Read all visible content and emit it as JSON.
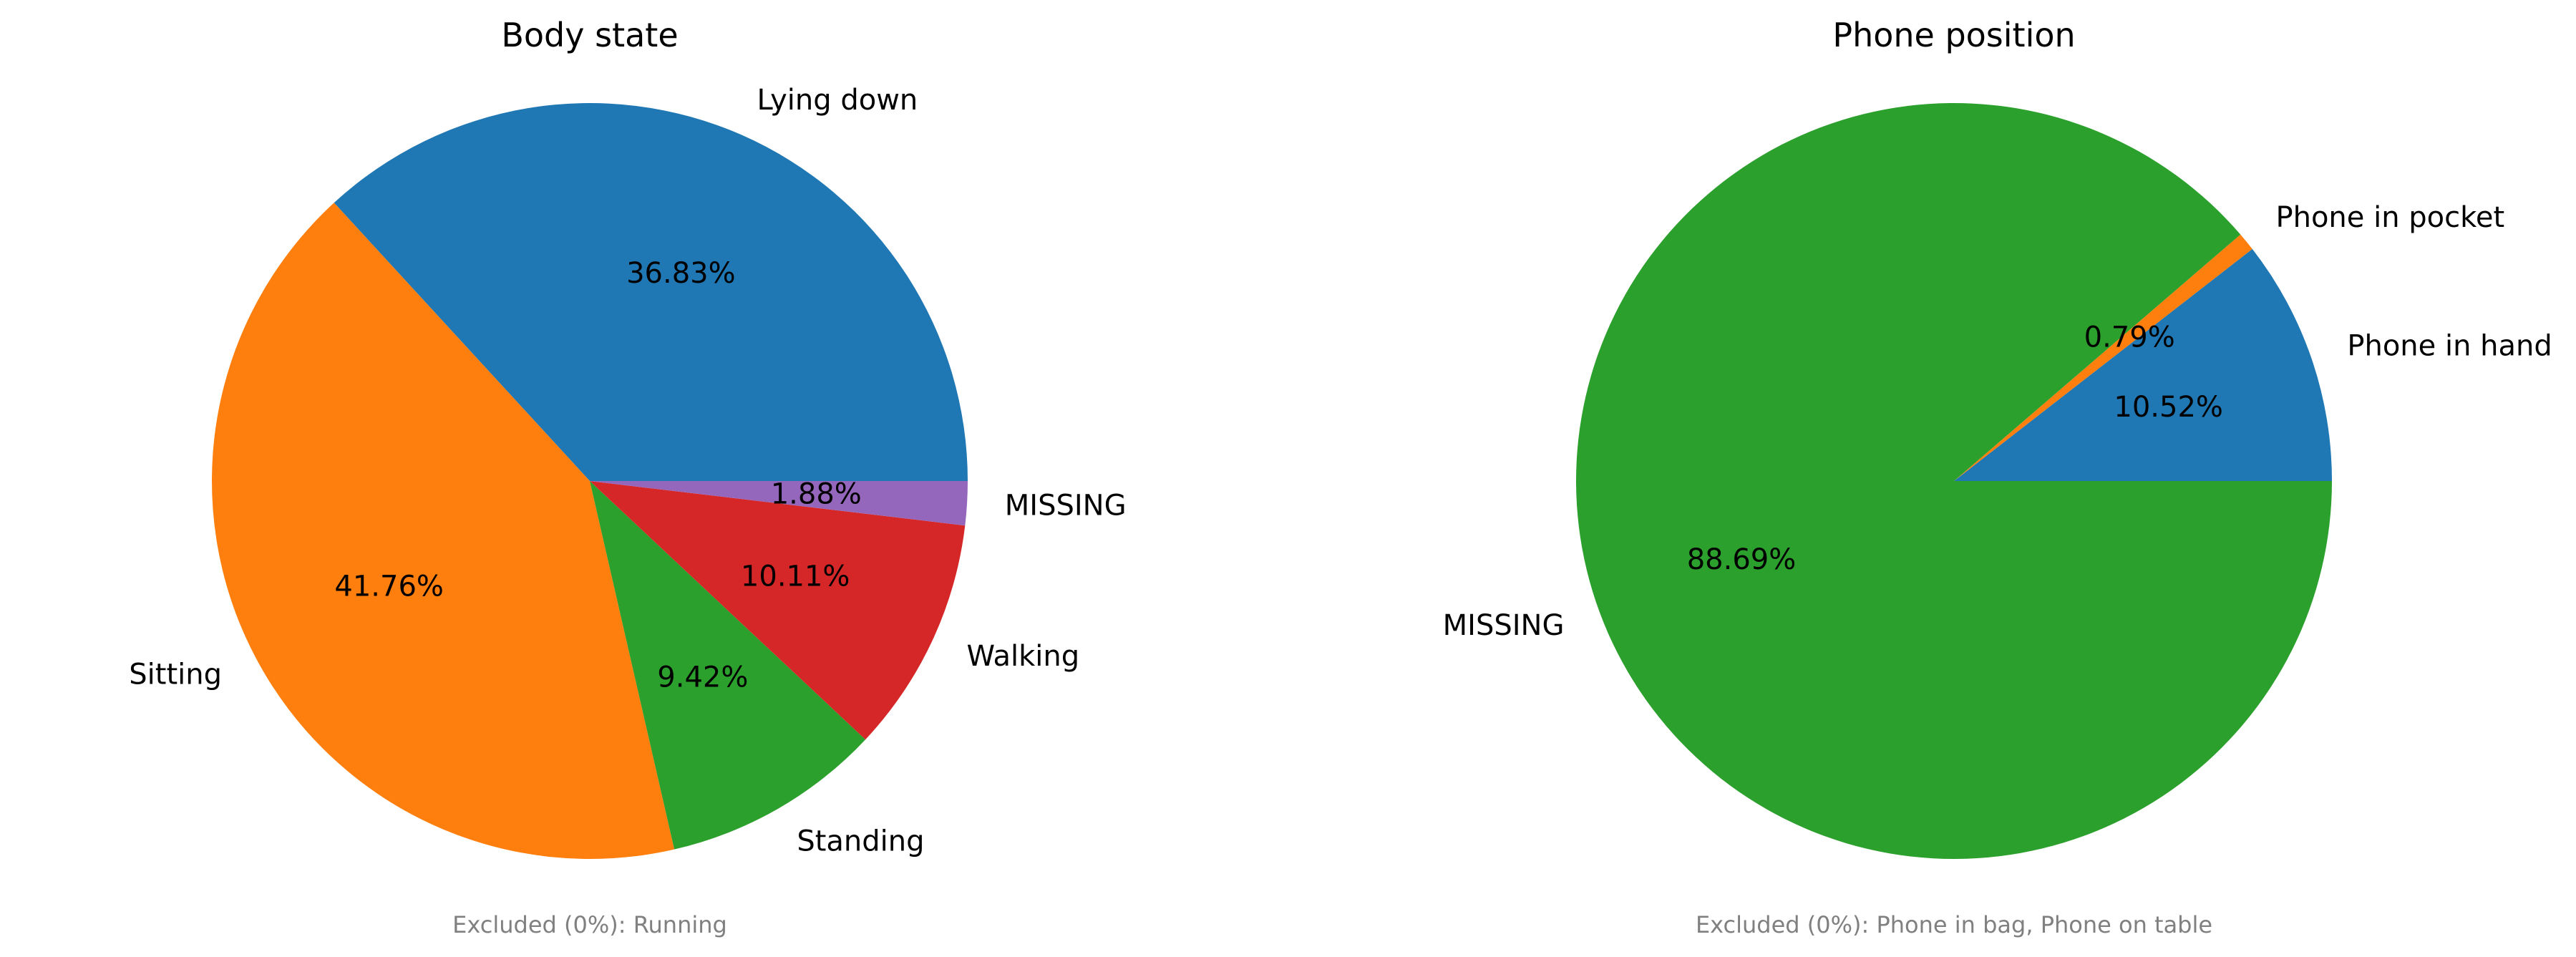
{
  "chart_data": [
    {
      "type": "pie",
      "title": "Body state",
      "categories": [
        "Lying down",
        "Sitting",
        "Standing",
        "Walking",
        "MISSING"
      ],
      "values": [
        36.83,
        41.76,
        9.42,
        10.11,
        1.88
      ],
      "percent_labels": [
        "36.83%",
        "41.76%",
        "9.42%",
        "10.11%",
        "1.88%"
      ],
      "colors": [
        "#1f77b4",
        "#ff7f0e",
        "#2ca02c",
        "#d62728",
        "#9467bd"
      ],
      "note": "Excluded (0%): Running"
    },
    {
      "type": "pie",
      "title": "Phone position",
      "categories": [
        "Phone in hand",
        "Phone in pocket",
        "MISSING"
      ],
      "values": [
        10.52,
        0.79,
        88.69
      ],
      "percent_labels": [
        "10.52%",
        "0.79%",
        "88.69%"
      ],
      "colors": [
        "#1f77b4",
        "#ff7f0e",
        "#2ca02c"
      ],
      "note": "Excluded (0%): Phone in bag, Phone on table"
    }
  ]
}
